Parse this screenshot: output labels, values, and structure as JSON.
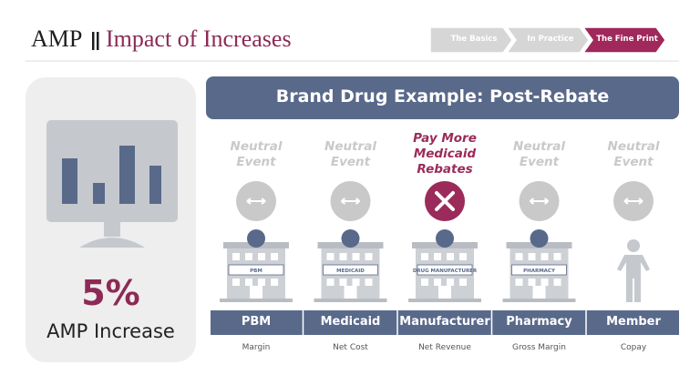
{
  "header": {
    "brand": "AMP",
    "title": "Impact of Increases"
  },
  "nav": [
    {
      "label": "The Basics",
      "color": "#d6d6d6"
    },
    {
      "label": "In Practice",
      "color": "#d6d6d6"
    },
    {
      "label": "The Fine Print",
      "color": "#a0285a"
    }
  ],
  "stat": {
    "value": "5%",
    "label": "AMP Increase"
  },
  "banner": "Brand Drug Example: Post-Rebate",
  "columns": [
    {
      "event": "Neutral Event",
      "color": "#c9c9c9",
      "mark": "arrows",
      "sign": "PBM",
      "name": "PBM",
      "metric": "Margin"
    },
    {
      "event": "Neutral Event",
      "color": "#c9c9c9",
      "mark": "arrows",
      "sign": "MEDICAID",
      "name": "Medicaid",
      "metric": "Net Cost"
    },
    {
      "event": "Pay More Medicaid Rebates",
      "color": "#9b2b5a",
      "mark": "x",
      "sign": "DRUG MANUFACTURER",
      "name": "Manufacturer",
      "metric": "Net Revenue"
    },
    {
      "event": "Neutral Event",
      "color": "#c9c9c9",
      "mark": "arrows",
      "sign": "PHARMACY",
      "name": "Pharmacy",
      "metric": "Gross Margin"
    },
    {
      "event": "Neutral Event",
      "color": "#c9c9c9",
      "mark": "arrows",
      "name": "Member",
      "metric": "Copay"
    }
  ]
}
